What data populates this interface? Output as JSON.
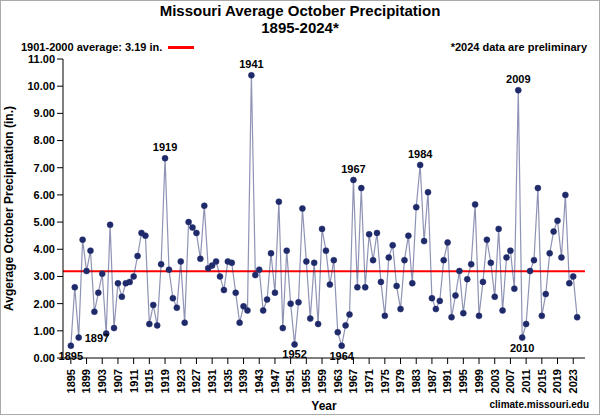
{
  "chart_data": {
    "type": "line",
    "title": "Missouri Average October Precipitation",
    "subtitle": "1895-2024*",
    "x_label": "Year",
    "y_label": "Avgerage October Precipitation (in.)",
    "note": "*2024 data are preliminary",
    "source": "climate.missouri.edu",
    "color": "#1f2a6b",
    "marker": "circle",
    "grid": false,
    "x": [
      1895,
      1896,
      1897,
      1898,
      1899,
      1900,
      1901,
      1902,
      1903,
      1904,
      1905,
      1906,
      1907,
      1908,
      1909,
      1910,
      1911,
      1912,
      1913,
      1914,
      1915,
      1916,
      1917,
      1918,
      1919,
      1920,
      1921,
      1922,
      1923,
      1924,
      1925,
      1926,
      1927,
      1928,
      1929,
      1930,
      1931,
      1932,
      1933,
      1934,
      1935,
      1936,
      1937,
      1938,
      1939,
      1940,
      1941,
      1942,
      1943,
      1944,
      1945,
      1946,
      1947,
      1948,
      1949,
      1950,
      1951,
      1952,
      1953,
      1954,
      1955,
      1956,
      1957,
      1958,
      1959,
      1960,
      1961,
      1962,
      1963,
      1964,
      1965,
      1966,
      1967,
      1968,
      1969,
      1970,
      1971,
      1972,
      1973,
      1974,
      1975,
      1976,
      1977,
      1978,
      1979,
      1980,
      1981,
      1982,
      1983,
      1984,
      1985,
      1986,
      1987,
      1988,
      1989,
      1990,
      1991,
      1992,
      1993,
      1994,
      1995,
      1996,
      1997,
      1998,
      1999,
      2000,
      2001,
      2002,
      2003,
      2004,
      2005,
      2006,
      2007,
      2008,
      2009,
      2010,
      2011,
      2012,
      2013,
      2014,
      2015,
      2016,
      2017,
      2018,
      2019,
      2020,
      2021,
      2022,
      2023,
      2024
    ],
    "values": [
      0.45,
      2.6,
      0.75,
      4.35,
      3.2,
      3.95,
      1.7,
      2.4,
      3.1,
      0.9,
      4.9,
      1.1,
      2.75,
      2.25,
      2.75,
      2.8,
      3.0,
      3.75,
      4.6,
      4.5,
      1.25,
      1.95,
      1.2,
      3.45,
      7.35,
      3.25,
      2.2,
      1.85,
      3.55,
      1.3,
      5.0,
      4.8,
      4.6,
      3.65,
      5.6,
      3.3,
      3.4,
      3.55,
      3.0,
      2.5,
      3.55,
      3.5,
      2.4,
      1.3,
      1.9,
      1.75,
      10.4,
      3.05,
      3.25,
      1.75,
      2.15,
      3.85,
      2.4,
      5.75,
      1.1,
      3.95,
      2.0,
      0.5,
      2.05,
      5.5,
      3.55,
      1.45,
      3.5,
      1.25,
      4.75,
      3.95,
      2.7,
      3.6,
      0.95,
      0.45,
      1.2,
      1.6,
      6.55,
      2.6,
      6.25,
      2.6,
      4.55,
      3.6,
      4.6,
      2.8,
      1.55,
      3.7,
      4.15,
      2.65,
      1.8,
      3.6,
      4.5,
      2.75,
      5.55,
      7.1,
      4.3,
      6.1,
      2.2,
      1.8,
      2.1,
      3.6,
      4.25,
      1.5,
      2.3,
      3.2,
      1.65,
      2.9,
      3.45,
      5.65,
      1.55,
      2.8,
      4.35,
      3.5,
      2.25,
      4.75,
      1.75,
      3.7,
      3.95,
      2.55,
      9.85,
      0.75,
      1.25,
      3.2,
      3.6,
      6.25,
      1.55,
      2.35,
      3.85,
      4.65,
      5.05,
      3.7,
      6.0,
      2.75,
      3.0,
      1.5
    ],
    "xlim": [
      1893,
      2026
    ],
    "xticks": [
      1895,
      1899,
      1903,
      1907,
      1911,
      1915,
      1919,
      1923,
      1927,
      1931,
      1935,
      1939,
      1943,
      1947,
      1951,
      1955,
      1959,
      1963,
      1967,
      1971,
      1975,
      1979,
      1983,
      1987,
      1991,
      1995,
      1999,
      2003,
      2007,
      2011,
      2015,
      2019,
      2023
    ],
    "ylim": [
      0,
      11
    ],
    "yticks": [
      {
        "value": 0,
        "label": "0.00"
      },
      {
        "value": 1,
        "label": "1.00"
      },
      {
        "value": 2,
        "label": "2.00"
      },
      {
        "value": 3,
        "label": "3.00"
      },
      {
        "value": 4,
        "label": "4.00"
      },
      {
        "value": 5,
        "label": "5.00"
      },
      {
        "value": 6,
        "label": "6.00"
      },
      {
        "value": 7,
        "label": "7.00"
      },
      {
        "value": 8,
        "label": "8.00"
      },
      {
        "value": 9,
        "label": "9.00"
      },
      {
        "value": 10,
        "label": "10.00"
      },
      {
        "value": 11,
        "label": "11.00"
      }
    ],
    "reference_line": {
      "value": 3.19,
      "label": "1901-2000 average: 3.19 in.",
      "color": "#ff0000"
    },
    "annotations": [
      {
        "x": 1895,
        "text": "1895"
      },
      {
        "x": 1897,
        "text": "1897"
      },
      {
        "x": 1919,
        "text": "1919"
      },
      {
        "x": 1941,
        "text": "1941"
      },
      {
        "x": 1952,
        "text": "1952"
      },
      {
        "x": 1964,
        "text": "1964"
      },
      {
        "x": 1967,
        "text": "1967"
      },
      {
        "x": 1984,
        "text": "1984"
      },
      {
        "x": 2009,
        "text": "2009"
      },
      {
        "x": 2010,
        "text": "2010"
      }
    ]
  }
}
